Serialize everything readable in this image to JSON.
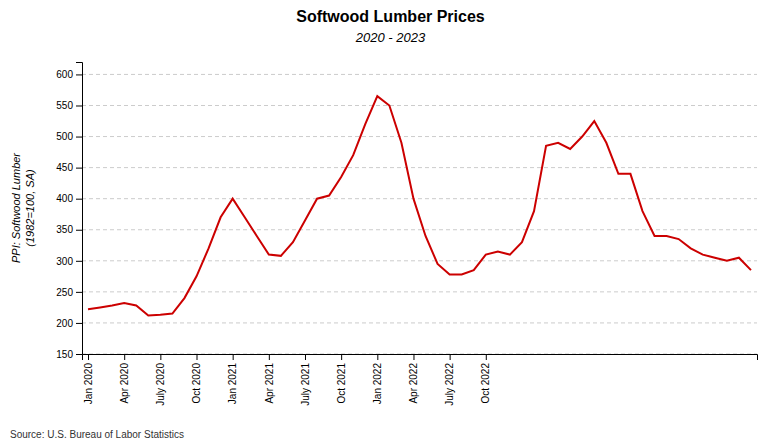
{
  "chart_data": {
    "type": "line",
    "title": "Softwood Lumber Prices",
    "subtitle": "2020 - 2023",
    "y_label": [
      "PPI: Softwood Lumber",
      "(1982=100, SA)"
    ],
    "source": "Source: U.S. Bureau of Labor Statistics",
    "color": "#cc0000",
    "grid": true,
    "ylim": [
      150,
      620
    ],
    "yticks": [
      150,
      200,
      250,
      300,
      350,
      400,
      450,
      500,
      550,
      600
    ],
    "categories": [
      "Jan 2020",
      null,
      null,
      "Apr 2020",
      null,
      null,
      "July 2020",
      null,
      null,
      "Oct 2020",
      null,
      null,
      "Jan 2021",
      null,
      null,
      "Apr 2021",
      null,
      null,
      "July 2021",
      null,
      null,
      "Oct 2021",
      null,
      null,
      "Jan 2022",
      null,
      null,
      "Apr 2022",
      null,
      null,
      "July 2022",
      null,
      null,
      "Oct 2022",
      null,
      null,
      null,
      null,
      null,
      null,
      null,
      null,
      null,
      null,
      null,
      null,
      null,
      null,
      null,
      null,
      null,
      null,
      null,
      null,
      null,
      null
    ],
    "values": [
      222,
      225,
      228,
      232,
      228,
      212,
      213,
      215,
      240,
      275,
      320,
      370,
      400,
      370,
      340,
      310,
      308,
      330,
      365,
      400,
      405,
      435,
      470,
      520,
      565,
      550,
      490,
      400,
      340,
      295,
      278,
      278,
      285,
      310,
      315,
      310,
      330,
      380,
      485,
      490,
      480,
      500,
      525,
      490,
      440,
      440,
      380,
      340,
      340,
      335,
      320,
      310,
      305,
      300,
      305,
      285
    ]
  }
}
